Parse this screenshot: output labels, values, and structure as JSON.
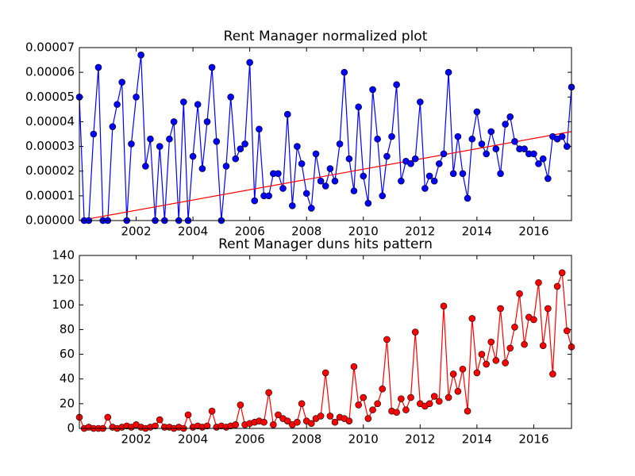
{
  "chart_data": [
    {
      "type": "line",
      "title": "Rent Manager normalized plot",
      "color": "#0000ff",
      "marker": "circle",
      "x": [
        2000,
        2000.17,
        2000.33,
        2000.5,
        2000.67,
        2000.83,
        2001,
        2001.17,
        2001.33,
        2001.5,
        2001.67,
        2001.83,
        2002,
        2002.17,
        2002.33,
        2002.5,
        2002.67,
        2002.83,
        2003,
        2003.17,
        2003.33,
        2003.5,
        2003.67,
        2003.83,
        2004,
        2004.17,
        2004.33,
        2004.5,
        2004.67,
        2004.83,
        2005,
        2005.17,
        2005.33,
        2005.5,
        2005.67,
        2005.83,
        2006,
        2006.17,
        2006.33,
        2006.5,
        2006.67,
        2006.83,
        2007,
        2007.17,
        2007.33,
        2007.5,
        2007.67,
        2007.83,
        2008,
        2008.17,
        2008.33,
        2008.5,
        2008.67,
        2008.83,
        2009,
        2009.17,
        2009.33,
        2009.5,
        2009.67,
        2009.83,
        2010,
        2010.17,
        2010.33,
        2010.5,
        2010.67,
        2010.83,
        2011,
        2011.17,
        2011.33,
        2011.5,
        2011.67,
        2011.83,
        2012,
        2012.17,
        2012.33,
        2012.5,
        2012.67,
        2012.83,
        2013,
        2013.17,
        2013.33,
        2013.5,
        2013.67,
        2013.83,
        2014,
        2014.17,
        2014.33,
        2014.5,
        2014.67,
        2014.83,
        2015,
        2015.17,
        2015.33,
        2015.5,
        2015.67,
        2015.83,
        2016,
        2016.17,
        2016.33,
        2016.5,
        2016.67,
        2016.83,
        2017,
        2017.17,
        2017.33
      ],
      "values": [
        5e-05,
        0,
        0,
        3.5e-05,
        6.2e-05,
        0,
        0,
        3.8e-05,
        4.7e-05,
        5.6e-05,
        0,
        3.1e-05,
        5e-05,
        6.7e-05,
        2.2e-05,
        3.3e-05,
        0,
        3e-05,
        0,
        3.3e-05,
        4e-05,
        0,
        4.8e-05,
        0,
        2.6e-05,
        4.7e-05,
        2.1e-05,
        4e-05,
        6.2e-05,
        3.2e-05,
        0,
        2.2e-05,
        5e-05,
        2.5e-05,
        2.9e-05,
        3.1e-05,
        6.4e-05,
        8e-06,
        3.7e-05,
        1e-05,
        1e-05,
        1.9e-05,
        1.9e-05,
        1.3e-05,
        4.3e-05,
        6e-06,
        3e-05,
        2.3e-05,
        1.1e-05,
        5e-06,
        2.7e-05,
        1.6e-05,
        1.4e-05,
        2.1e-05,
        1.6e-05,
        3.1e-05,
        6e-05,
        2.5e-05,
        1.2e-05,
        4.6e-05,
        1.8e-05,
        7e-06,
        5.3e-05,
        3.3e-05,
        1e-05,
        2.6e-05,
        3.4e-05,
        5.5e-05,
        1.6e-05,
        2.4e-05,
        2.3e-05,
        2.5e-05,
        4.8e-05,
        1.3e-05,
        1.8e-05,
        1.6e-05,
        2.3e-05,
        2.7e-05,
        6e-05,
        1.9e-05,
        3.4e-05,
        1.9e-05,
        9e-06,
        3.3e-05,
        4.4e-05,
        3.1e-05,
        2.7e-05,
        3.6e-05,
        2.9e-05,
        1.9e-05,
        3.9e-05,
        4.2e-05,
        3.2e-05,
        2.9e-05,
        2.9e-05,
        2.7e-05,
        2.7e-05,
        2.3e-05,
        2.5e-05,
        1.7e-05,
        3.4e-05,
        3.3e-05,
        3.4e-05,
        3e-05,
        5.4e-05
      ],
      "trend": {
        "x": [
          2000,
          2017.33
        ],
        "values": [
          0,
          3.6e-05
        ],
        "color": "#ff0000"
      },
      "xlim": [
        2000,
        2017.33
      ],
      "xticks": [
        2002,
        2004,
        2006,
        2008,
        2010,
        2012,
        2014,
        2016
      ],
      "ylim": [
        0,
        7e-05
      ],
      "yticks": [
        {
          "value": 0,
          "label": "0.00000"
        },
        {
          "value": 1e-05,
          "label": "0.00001"
        },
        {
          "value": 2e-05,
          "label": "0.00002"
        },
        {
          "value": 3e-05,
          "label": "0.00003"
        },
        {
          "value": 4e-05,
          "label": "0.00004"
        },
        {
          "value": 5e-05,
          "label": "0.00005"
        },
        {
          "value": 6e-05,
          "label": "0.00006"
        },
        {
          "value": 7e-05,
          "label": "0.00007"
        }
      ]
    },
    {
      "type": "line",
      "title": "Rent Manager duns hits pattern",
      "color": "#ff0000",
      "marker": "circle",
      "x": [
        2000,
        2000.17,
        2000.33,
        2000.5,
        2000.67,
        2000.83,
        2001,
        2001.17,
        2001.33,
        2001.5,
        2001.67,
        2001.83,
        2002,
        2002.17,
        2002.33,
        2002.5,
        2002.67,
        2002.83,
        2003,
        2003.17,
        2003.33,
        2003.5,
        2003.67,
        2003.83,
        2004,
        2004.17,
        2004.33,
        2004.5,
        2004.67,
        2004.83,
        2005,
        2005.17,
        2005.33,
        2005.5,
        2005.67,
        2005.83,
        2006,
        2006.17,
        2006.33,
        2006.5,
        2006.67,
        2006.83,
        2007,
        2007.17,
        2007.33,
        2007.5,
        2007.67,
        2007.83,
        2008,
        2008.17,
        2008.33,
        2008.5,
        2008.67,
        2008.83,
        2009,
        2009.17,
        2009.33,
        2009.5,
        2009.67,
        2009.83,
        2010,
        2010.17,
        2010.33,
        2010.5,
        2010.67,
        2010.83,
        2011,
        2011.17,
        2011.33,
        2011.5,
        2011.67,
        2011.83,
        2012,
        2012.17,
        2012.33,
        2012.5,
        2012.67,
        2012.83,
        2013,
        2013.17,
        2013.33,
        2013.5,
        2013.67,
        2013.83,
        2014,
        2014.17,
        2014.33,
        2014.5,
        2014.67,
        2014.83,
        2015,
        2015.17,
        2015.33,
        2015.5,
        2015.67,
        2015.83,
        2016,
        2016.17,
        2016.33,
        2016.5,
        2016.67,
        2016.83,
        2017,
        2017.17,
        2017.33
      ],
      "values": [
        9,
        0,
        1,
        0,
        0,
        0,
        9,
        1,
        0,
        1,
        2,
        1,
        3,
        1,
        0,
        1,
        2,
        7,
        1,
        1,
        0,
        1,
        0,
        11,
        1,
        2,
        1,
        2,
        14,
        1,
        2,
        1,
        2,
        3,
        19,
        3,
        4,
        5,
        6,
        5,
        29,
        3,
        11,
        8,
        6,
        3,
        5,
        20,
        6,
        4,
        8,
        10,
        45,
        10,
        5,
        9,
        8,
        6,
        50,
        19,
        25,
        8,
        15,
        20,
        32,
        72,
        14,
        13,
        24,
        15,
        25,
        78,
        20,
        18,
        20,
        26,
        22,
        99,
        25,
        44,
        30,
        48,
        14,
        89,
        45,
        60,
        52,
        70,
        55,
        97,
        53,
        65,
        82,
        109,
        68,
        90,
        88,
        118,
        67,
        97,
        44,
        115,
        126,
        79,
        66
      ],
      "xlim": [
        2000,
        2017.33
      ],
      "xticks": [
        2002,
        2004,
        2006,
        2008,
        2010,
        2012,
        2014,
        2016
      ],
      "ylim": [
        0,
        140
      ],
      "yticks": [
        0,
        20,
        40,
        60,
        80,
        100,
        120,
        140
      ]
    }
  ]
}
